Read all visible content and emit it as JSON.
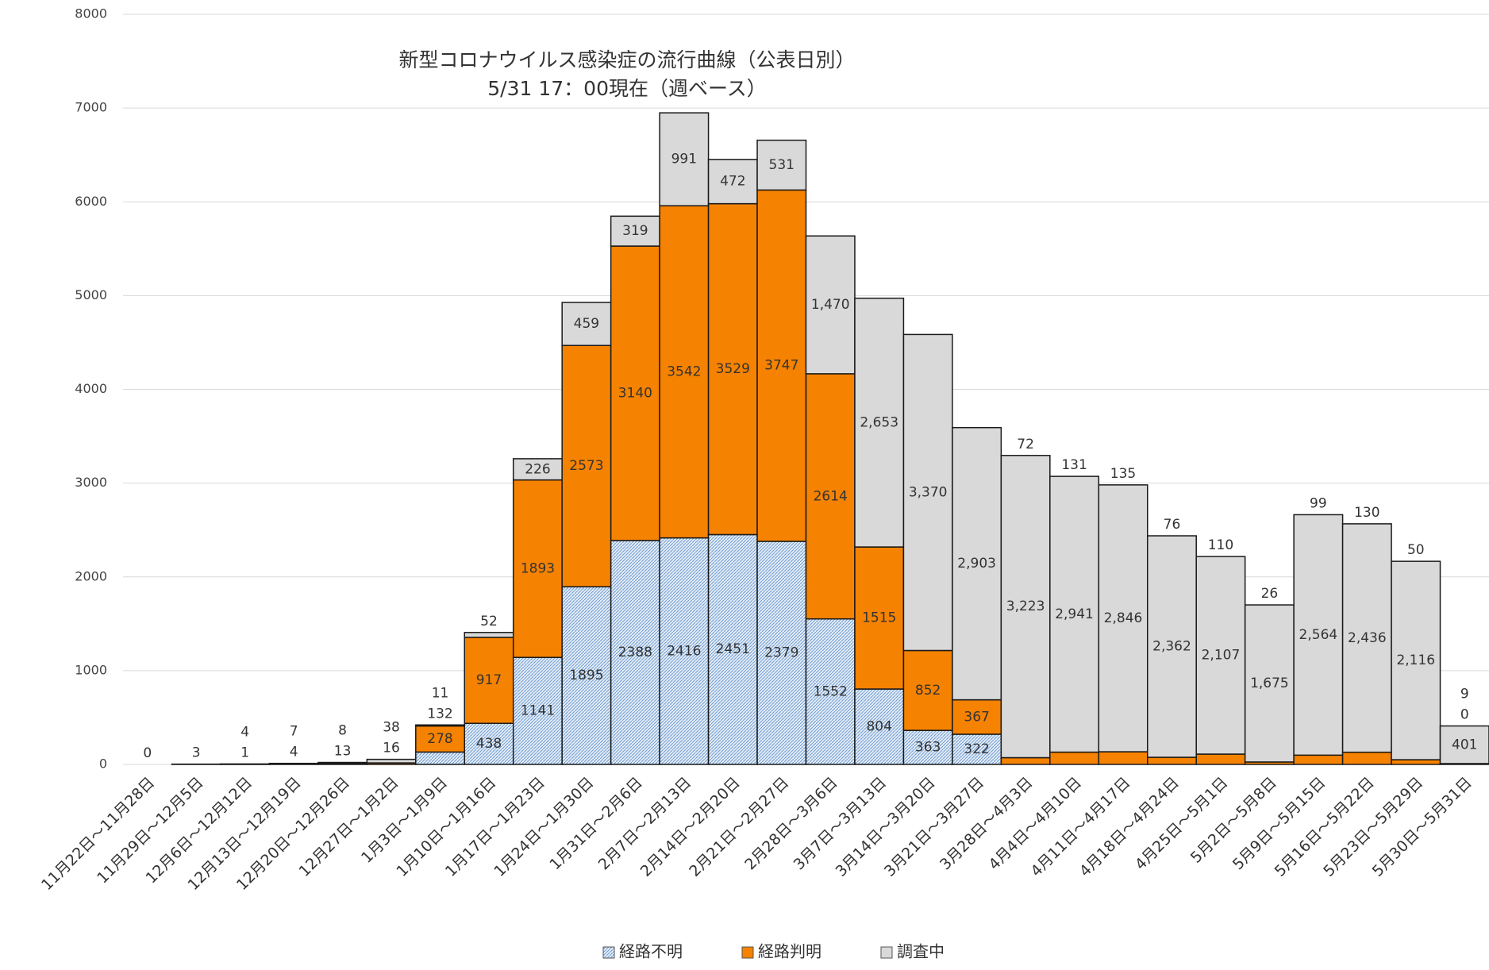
{
  "chart_data": {
    "type": "stacked-bar",
    "title": "新型コロナウイルス感染症の流行曲線（公表日別）",
    "subtitle": "5/31 17：00現在（週ベース）",
    "categories": [
      "11月22日～11月28日",
      "11月29日～12月5日",
      "12月6日～12月12日",
      "12月13日～12月19日",
      "12月20日～12月26日",
      "12月27日～1月2日",
      "1月3日～1月9日",
      "1月10日～1月16日",
      "1月17日～1月23日",
      "1月24日～1月30日",
      "1月31日～2月6日",
      "2月7日～2月13日",
      "2月14日～2月20日",
      "2月21日～2月27日",
      "2月28日～3月6日",
      "3月7日～3月13日",
      "3月14日～3月20日",
      "3月21日～3月27日",
      "3月28日～4月3日",
      "4月4日～4月10日",
      "4月11日～4月17日",
      "4月18日～4月24日",
      "4月25日～5月1日",
      "5月2日～5月8日",
      "5月9日～5月15日",
      "5月16日～5月22日",
      "5月23日～5月29日",
      "5月30日～5月31日"
    ],
    "series": [
      {
        "name": "経路不明",
        "color": "#9dbbe0",
        "values": [
          0,
          null,
          null,
          null,
          null,
          null,
          132,
          438,
          1141,
          1895,
          2388,
          2416,
          2451,
          2379,
          1552,
          804,
          363,
          322,
          null,
          null,
          null,
          null,
          null,
          null,
          null,
          null,
          null,
          0
        ]
      },
      {
        "name": "経路判明",
        "color": "#f58200",
        "values": [
          null,
          3,
          1,
          4,
          13,
          16,
          278,
          917,
          1893,
          2573,
          3140,
          3542,
          3529,
          3747,
          2614,
          1515,
          852,
          367,
          72,
          131,
          135,
          76,
          110,
          26,
          99,
          130,
          50,
          9
        ]
      },
      {
        "name": "調査中",
        "color": "#d9d9d9",
        "values": [
          null,
          null,
          4,
          7,
          8,
          38,
          11,
          52,
          226,
          459,
          319,
          991,
          472,
          531,
          1470,
          2653,
          3370,
          2903,
          3223,
          2941,
          2846,
          2362,
          2107,
          1675,
          2564,
          2436,
          2116,
          401
        ],
        "value_labels": [
          null,
          null,
          "4",
          "7",
          "8",
          "38",
          "11",
          "52",
          "226",
          "459",
          "319",
          "991",
          "472",
          "531",
          "1,470",
          "2,653",
          "3,370",
          "2,903",
          "3,223",
          "2,941",
          "2,846",
          "2,362",
          "2,107",
          "1,675",
          "2,564",
          "2,436",
          "2,116",
          "401"
        ]
      }
    ],
    "ylim": [
      0,
      8000
    ],
    "yticks": [
      0,
      1000,
      2000,
      3000,
      4000,
      5000,
      6000,
      7000,
      8000
    ],
    "grid": true,
    "legend": "bottom"
  }
}
